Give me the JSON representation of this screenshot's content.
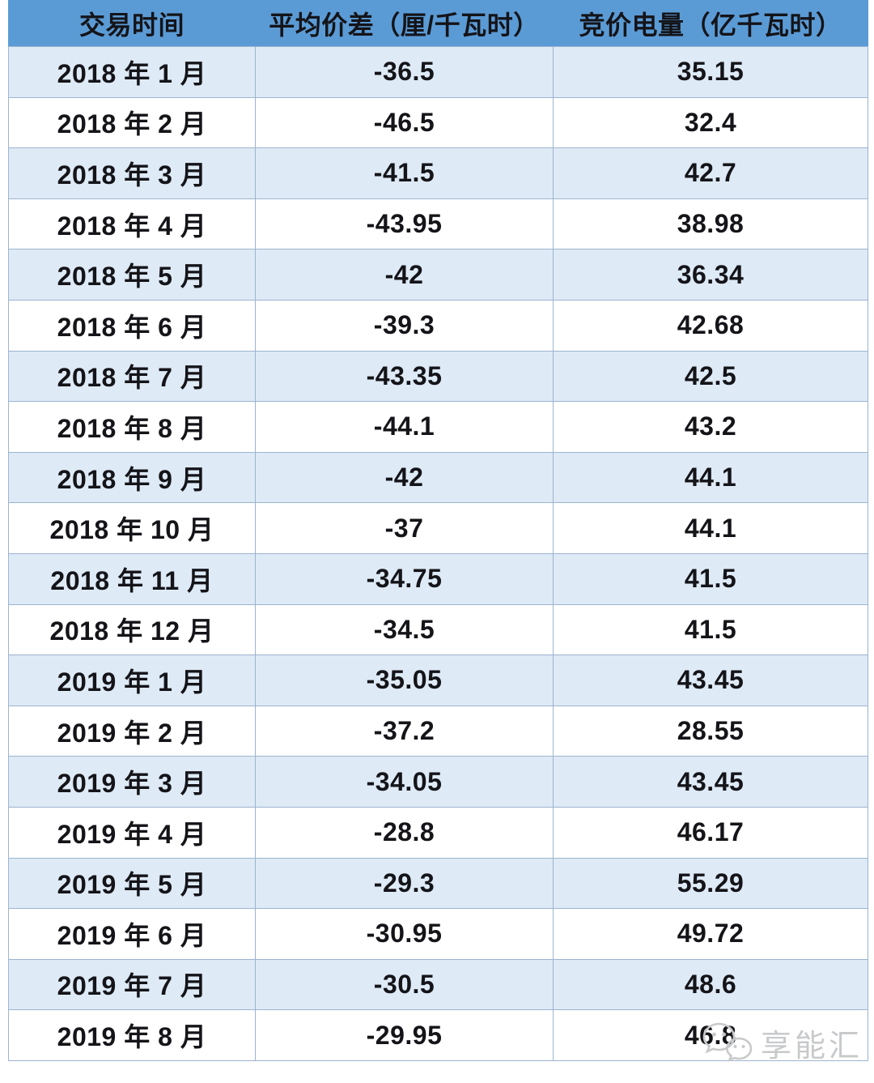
{
  "colors": {
    "header_bg": "#5B9BD5",
    "band_bg": "#DEEAF6",
    "row_bg": "#FFFFFF",
    "border_color": "#9DB4CF",
    "text_color": "#141419",
    "watermark_color": "#C8C9CB"
  },
  "watermark": {
    "label": "享能汇",
    "icon": "wechat-logo-icon"
  },
  "chart_data": {
    "type": "table",
    "columns": [
      "交易时间",
      "平均价差（厘/千瓦时）",
      "竞价电量（亿千瓦时）"
    ],
    "column_keys": [
      "trading_month",
      "avg_price_spread_li_per_kwh",
      "bid_volume_100m_kwh"
    ],
    "rows": [
      [
        "2018 年 1 月",
        "-36.5",
        "35.15"
      ],
      [
        "2018 年 2 月",
        "-46.5",
        "32.4"
      ],
      [
        "2018 年 3 月",
        "-41.5",
        "42.7"
      ],
      [
        "2018 年 4 月",
        "-43.95",
        "38.98"
      ],
      [
        "2018 年 5 月",
        "-42",
        "36.34"
      ],
      [
        "2018 年 6 月",
        "-39.3",
        "42.68"
      ],
      [
        "2018 年 7 月",
        "-43.35",
        "42.5"
      ],
      [
        "2018 年 8 月",
        "-44.1",
        "43.2"
      ],
      [
        "2018 年 9 月",
        "-42",
        "44.1"
      ],
      [
        "2018 年 10 月",
        "-37",
        "44.1"
      ],
      [
        "2018 年 11 月",
        "-34.75",
        "41.5"
      ],
      [
        "2018 年 12 月",
        "-34.5",
        "41.5"
      ],
      [
        "2019 年 1 月",
        "-35.05",
        "43.45"
      ],
      [
        "2019 年 2 月",
        "-37.2",
        "28.55"
      ],
      [
        "2019 年 3 月",
        "-34.05",
        "43.45"
      ],
      [
        "2019 年 4 月",
        "-28.8",
        "46.17"
      ],
      [
        "2019 年 5 月",
        "-29.3",
        "55.29"
      ],
      [
        "2019 年 6 月",
        "-30.95",
        "49.72"
      ],
      [
        "2019 年 7 月",
        "-30.5",
        "48.6"
      ],
      [
        "2019 年 8 月",
        "-29.95",
        "46.8"
      ]
    ],
    "banding": "odd-rows-light-blue",
    "legend_position": "none",
    "grid": true
  }
}
